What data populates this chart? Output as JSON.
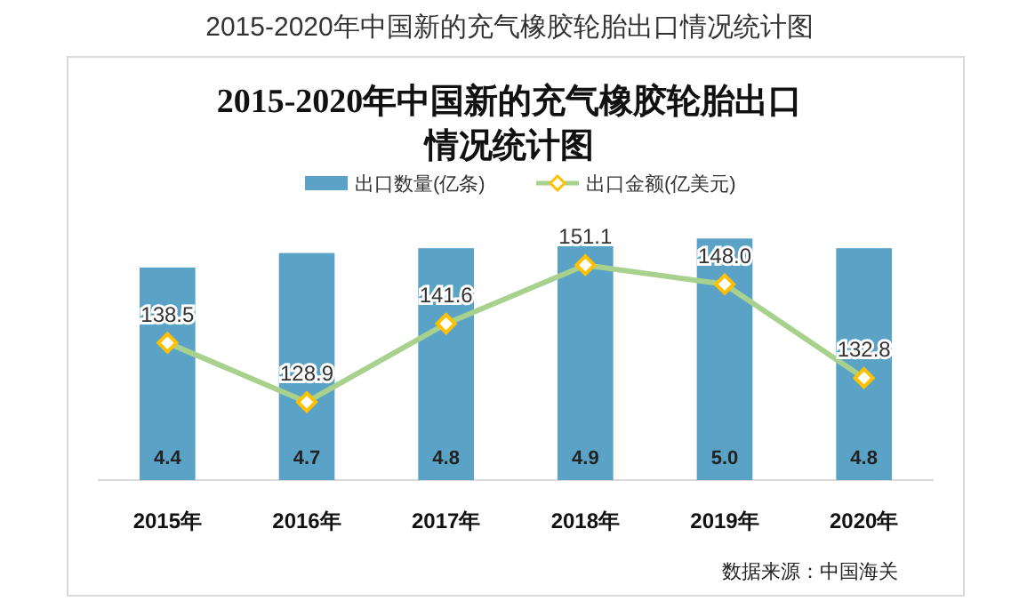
{
  "chart_data": {
    "type": "bar",
    "title": "2015-2020年中国新的充气橡胶轮胎出口情况统计图",
    "categories": [
      "2015年",
      "2016年",
      "2017年",
      "2018年",
      "2019年",
      "2020年"
    ],
    "series": [
      {
        "name": "出口数量(亿条)",
        "color": "#5ba3c6",
        "values": [
          4.4,
          4.7,
          4.8,
          4.9,
          5.0,
          4.8
        ],
        "value_labels": [
          "4.4",
          "4.7",
          "4.8",
          "4.9",
          "5.0",
          "4.8"
        ]
      },
      {
        "name": "出口金额(亿美元)",
        "type": "line",
        "axis": "y2",
        "color": "#a9d18e",
        "marker": "diamond",
        "values": [
          138.5,
          128.9,
          141.6,
          151.1,
          148.0,
          132.8
        ],
        "value_labels": [
          "138.5",
          "128.9",
          "141.6",
          "151.1",
          "148.0",
          "132.8"
        ]
      }
    ],
    "legend": "top",
    "tick_labels": "x",
    "annotations": [
      "2015-2020年中国新的充气橡胶轮胎出口情况统计图",
      "数据来源：中国海关"
    ]
  }
}
